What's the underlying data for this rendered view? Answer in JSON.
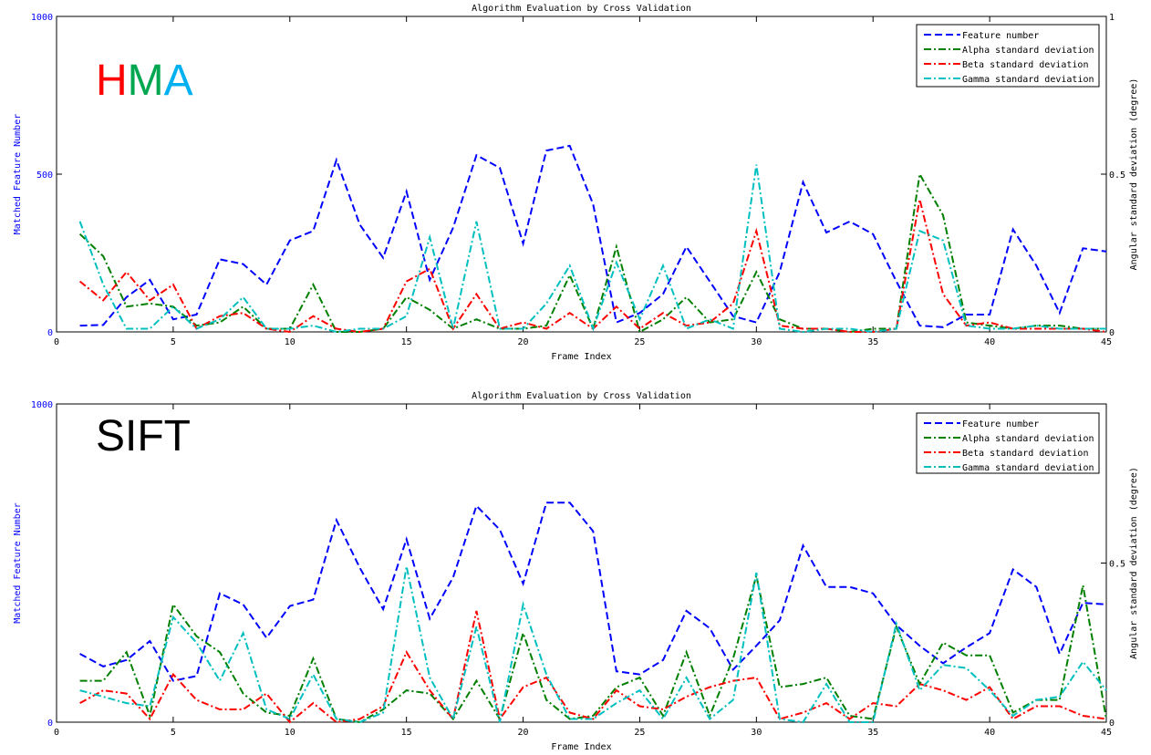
{
  "chart_data": [
    {
      "type": "line",
      "panel_label": {
        "parts": [
          {
            "text": "H",
            "color": "#ff0000"
          },
          {
            "text": "M",
            "color": "#00a650"
          },
          {
            "text": "A",
            "color": "#00b0f0"
          }
        ]
      },
      "title": "Algorithm Evaluation by Cross Validation",
      "xlabel": "Frame Index",
      "ylabel_left": "Matched Feature Number",
      "ylabel_right": "Angular standard deviation (degree)",
      "xlim": [
        0,
        45
      ],
      "xticks": [
        0,
        5,
        10,
        15,
        20,
        25,
        30,
        35,
        40,
        45
      ],
      "ylim_left": [
        0,
        1000
      ],
      "yticks_left": [
        0,
        500,
        1000
      ],
      "ylim_right": [
        0,
        1
      ],
      "yticks_right": [
        0,
        0.5,
        1
      ],
      "legend_position": "top-right",
      "grid": false,
      "x": [
        1,
        2,
        3,
        4,
        5,
        6,
        7,
        8,
        9,
        10,
        11,
        12,
        13,
        14,
        15,
        16,
        17,
        18,
        19,
        20,
        21,
        22,
        23,
        24,
        25,
        26,
        27,
        28,
        29,
        30,
        31,
        32,
        33,
        34,
        35,
        36,
        37,
        38,
        39,
        40,
        41,
        42,
        43,
        44,
        45
      ],
      "series": [
        {
          "name": "Feature number",
          "axis": "left",
          "color": "#0000ff",
          "dash": "dash",
          "values": [
            20,
            22,
            110,
            165,
            40,
            55,
            230,
            215,
            150,
            290,
            320,
            545,
            340,
            235,
            445,
            165,
            330,
            560,
            520,
            280,
            575,
            590,
            405,
            30,
            60,
            120,
            270,
            160,
            50,
            30,
            190,
            475,
            315,
            350,
            310,
            160,
            20,
            15,
            55,
            55,
            325,
            210,
            60,
            265,
            255
          ]
        },
        {
          "name": "Alpha standard deviation",
          "axis": "right",
          "color": "#007f00",
          "dash": "dashdot",
          "values": [
            0.31,
            0.24,
            0.08,
            0.09,
            0.08,
            0.02,
            0.03,
            0.08,
            0.01,
            0.01,
            0.15,
            0.0,
            0.0,
            0.01,
            0.11,
            0.07,
            0.01,
            0.04,
            0.01,
            0.01,
            0.02,
            0.18,
            0.01,
            0.27,
            0.0,
            0.04,
            0.11,
            0.03,
            0.04,
            0.19,
            0.04,
            0.01,
            0.01,
            0.0,
            0.01,
            0.01,
            0.5,
            0.37,
            0.03,
            0.02,
            0.01,
            0.02,
            0.02,
            0.01,
            0.01
          ]
        },
        {
          "name": "Beta standard deviation",
          "axis": "right",
          "color": "#ff0000",
          "dash": "dashdot",
          "values": [
            0.16,
            0.1,
            0.19,
            0.1,
            0.15,
            0.01,
            0.05,
            0.06,
            0.01,
            0.0,
            0.05,
            0.01,
            0.0,
            0.01,
            0.16,
            0.2,
            0.01,
            0.12,
            0.01,
            0.03,
            0.01,
            0.06,
            0.01,
            0.08,
            0.01,
            0.06,
            0.02,
            0.03,
            0.09,
            0.32,
            0.02,
            0.01,
            0.01,
            0.0,
            0.0,
            0.01,
            0.42,
            0.12,
            0.02,
            0.03,
            0.01,
            0.01,
            0.01,
            0.01,
            0.0
          ]
        },
        {
          "name": "Gamma standard deviation",
          "axis": "right",
          "color": "#00bfbf",
          "dash": "dashdot",
          "values": [
            0.35,
            0.15,
            0.01,
            0.01,
            0.08,
            0.01,
            0.04,
            0.11,
            0.01,
            0.01,
            0.02,
            0.0,
            0.01,
            0.01,
            0.05,
            0.3,
            0.01,
            0.35,
            0.01,
            0.01,
            0.09,
            0.21,
            0.01,
            0.22,
            0.04,
            0.21,
            0.01,
            0.04,
            0.01,
            0.53,
            0.01,
            0.0,
            0.01,
            0.01,
            0.0,
            0.01,
            0.32,
            0.29,
            0.02,
            0.01,
            0.01,
            0.02,
            0.01,
            0.01,
            0.01
          ]
        }
      ]
    },
    {
      "type": "line",
      "panel_label": {
        "parts": [
          {
            "text": "SIFT",
            "color": "#000000"
          }
        ]
      },
      "title": "Algorithm Evaluation by Cross Validation",
      "xlabel": "Frame Index",
      "ylabel_left": "Matched Feature Number",
      "ylabel_right": "Angular standard deviation (degree)",
      "xlim": [
        0,
        45
      ],
      "xticks": [
        0,
        5,
        10,
        15,
        20,
        25,
        30,
        35,
        40,
        45
      ],
      "ylim_left": [
        0,
        1000
      ],
      "yticks_left": [
        0,
        1000
      ],
      "ylim_right": [
        0,
        1
      ],
      "yticks_right": [
        0,
        0.5
      ],
      "legend_position": "top-right",
      "grid": false,
      "x": [
        1,
        2,
        3,
        4,
        5,
        6,
        7,
        8,
        9,
        10,
        11,
        12,
        13,
        14,
        15,
        16,
        17,
        18,
        19,
        20,
        21,
        22,
        23,
        24,
        25,
        26,
        27,
        28,
        29,
        30,
        31,
        32,
        33,
        34,
        35,
        36,
        37,
        38,
        39,
        40,
        41,
        42,
        43,
        44,
        45
      ],
      "series": [
        {
          "name": "Feature number",
          "axis": "left",
          "color": "#0000ff",
          "dash": "dash",
          "values": [
            215,
            175,
            195,
            255,
            130,
            145,
            405,
            370,
            265,
            365,
            385,
            635,
            485,
            355,
            575,
            325,
            455,
            680,
            605,
            435,
            690,
            690,
            600,
            160,
            150,
            195,
            350,
            295,
            165,
            240,
            320,
            555,
            425,
            425,
            405,
            305,
            240,
            185,
            235,
            280,
            480,
            425,
            215,
            375,
            370
          ]
        },
        {
          "name": "Alpha standard deviation",
          "axis": "right",
          "color": "#007f00",
          "dash": "dashdot",
          "values": [
            0.13,
            0.13,
            0.22,
            0.02,
            0.37,
            0.27,
            0.22,
            0.09,
            0.03,
            0.02,
            0.2,
            0.01,
            0.0,
            0.04,
            0.1,
            0.09,
            0.01,
            0.13,
            0.01,
            0.28,
            0.07,
            0.01,
            0.02,
            0.11,
            0.14,
            0.02,
            0.22,
            0.02,
            0.2,
            0.46,
            0.11,
            0.12,
            0.14,
            0.02,
            0.01,
            0.3,
            0.12,
            0.25,
            0.21,
            0.21,
            0.03,
            0.07,
            0.07,
            0.43,
            0.01
          ]
        },
        {
          "name": "Beta standard deviation",
          "axis": "right",
          "color": "#ff0000",
          "dash": "dashdot",
          "values": [
            0.06,
            0.1,
            0.09,
            0.01,
            0.15,
            0.07,
            0.04,
            0.04,
            0.09,
            0.0,
            0.06,
            0.0,
            0.01,
            0.05,
            0.22,
            0.1,
            0.01,
            0.35,
            0.01,
            0.11,
            0.14,
            0.03,
            0.01,
            0.1,
            0.05,
            0.04,
            0.08,
            0.11,
            0.13,
            0.14,
            0.01,
            0.03,
            0.06,
            0.01,
            0.06,
            0.05,
            0.12,
            0.1,
            0.07,
            0.11,
            0.01,
            0.05,
            0.05,
            0.02,
            0.01
          ]
        },
        {
          "name": "Gamma standard deviation",
          "axis": "right",
          "color": "#00bfbf",
          "dash": "dashdot",
          "values": [
            0.1,
            0.08,
            0.06,
            0.05,
            0.33,
            0.25,
            0.13,
            0.28,
            0.04,
            0.01,
            0.15,
            0.01,
            0.0,
            0.03,
            0.49,
            0.14,
            0.01,
            0.3,
            0.0,
            0.37,
            0.15,
            0.01,
            0.01,
            0.06,
            0.1,
            0.01,
            0.14,
            0.01,
            0.07,
            0.47,
            0.01,
            0.0,
            0.12,
            0.0,
            0.0,
            0.31,
            0.1,
            0.18,
            0.17,
            0.1,
            0.02,
            0.07,
            0.08,
            0.19,
            0.1
          ]
        }
      ]
    }
  ]
}
